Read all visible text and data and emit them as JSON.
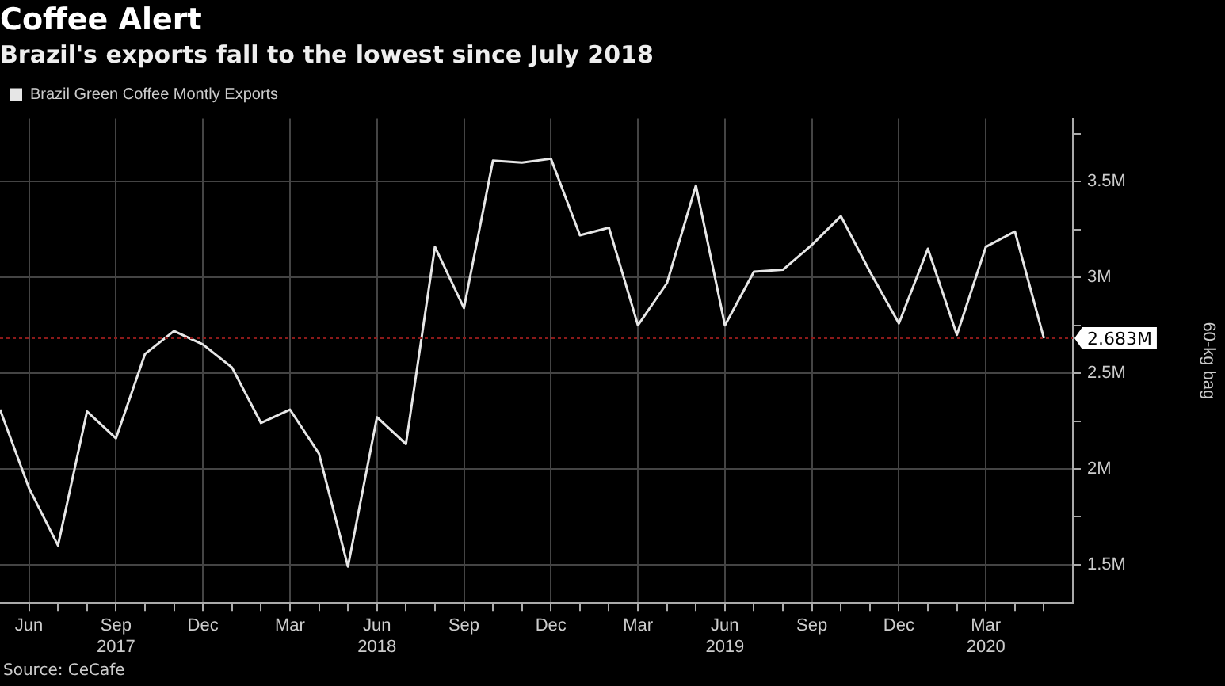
{
  "chart_data": {
    "type": "line",
    "title": "Coffee Alert",
    "subtitle": "Brazil's exports fall to the lowest since July 2018",
    "x": [
      "2017-05",
      "2017-06",
      "2017-07",
      "2017-08",
      "2017-09",
      "2017-10",
      "2017-11",
      "2017-12",
      "2018-01",
      "2018-02",
      "2018-03",
      "2018-04",
      "2018-05",
      "2018-06",
      "2018-07",
      "2018-08",
      "2018-09",
      "2018-10",
      "2018-11",
      "2018-12",
      "2019-01",
      "2019-02",
      "2019-03",
      "2019-04",
      "2019-05",
      "2019-06",
      "2019-07",
      "2019-08",
      "2019-09",
      "2019-10",
      "2019-11",
      "2019-12",
      "2020-01",
      "2020-02",
      "2020-03",
      "2020-04",
      "2020-05"
    ],
    "series": [
      {
        "name": "Brazil Green Coffee Montly Exports",
        "color": "#e6e6e6",
        "values": [
          2.31,
          1.9,
          1.6,
          2.3,
          2.16,
          2.6,
          2.72,
          2.65,
          2.53,
          2.24,
          2.31,
          2.08,
          1.49,
          2.27,
          2.13,
          3.16,
          2.84,
          3.61,
          3.6,
          3.62,
          3.22,
          3.26,
          2.75,
          2.97,
          3.48,
          2.75,
          3.03,
          3.04,
          3.17,
          3.32,
          3.03,
          2.76,
          3.15,
          2.7,
          3.16,
          3.24,
          2.683
        ]
      }
    ],
    "xlim": [
      "2017-05",
      "2020-06"
    ],
    "xticks": [
      {
        "value": "2017-06",
        "label": "Jun"
      },
      {
        "value": "2017-07",
        "label": null
      },
      {
        "value": "2017-08",
        "label": null
      },
      {
        "value": "2017-09",
        "label": "Sep\n2017"
      },
      {
        "value": "2017-10",
        "label": null
      },
      {
        "value": "2017-11",
        "label": null
      },
      {
        "value": "2017-12",
        "label": "Dec"
      },
      {
        "value": "2018-01",
        "label": null
      },
      {
        "value": "2018-02",
        "label": null
      },
      {
        "value": "2018-03",
        "label": "Mar"
      },
      {
        "value": "2018-04",
        "label": null
      },
      {
        "value": "2018-05",
        "label": null
      },
      {
        "value": "2018-06",
        "label": "Jun\n2018"
      },
      {
        "value": "2018-07",
        "label": null
      },
      {
        "value": "2018-08",
        "label": null
      },
      {
        "value": "2018-09",
        "label": "Sep"
      },
      {
        "value": "2018-10",
        "label": null
      },
      {
        "value": "2018-11",
        "label": null
      },
      {
        "value": "2018-12",
        "label": "Dec"
      },
      {
        "value": "2019-01",
        "label": null
      },
      {
        "value": "2019-02",
        "label": null
      },
      {
        "value": "2019-03",
        "label": "Mar"
      },
      {
        "value": "2019-04",
        "label": null
      },
      {
        "value": "2019-05",
        "label": null
      },
      {
        "value": "2019-06",
        "label": "Jun\n2019"
      },
      {
        "value": "2019-07",
        "label": null
      },
      {
        "value": "2019-08",
        "label": null
      },
      {
        "value": "2019-09",
        "label": "Sep"
      },
      {
        "value": "2019-10",
        "label": null
      },
      {
        "value": "2019-11",
        "label": null
      },
      {
        "value": "2019-12",
        "label": "Dec"
      },
      {
        "value": "2020-01",
        "label": null
      },
      {
        "value": "2020-02",
        "label": null
      },
      {
        "value": "2020-03",
        "label": "Mar\n2020"
      },
      {
        "value": "2020-04",
        "label": null
      },
      {
        "value": "2020-05",
        "label": null
      }
    ],
    "ylim": [
      1.3,
      3.83
    ],
    "yticks": [
      {
        "value": 1.5,
        "label": "1.5M"
      },
      {
        "value": 1.75,
        "label": null
      },
      {
        "value": 2,
        "label": "2M"
      },
      {
        "value": 2.25,
        "label": null
      },
      {
        "value": 2.5,
        "label": "2.5M"
      },
      {
        "value": 2.75,
        "label": null
      },
      {
        "value": 3,
        "label": "3M"
      },
      {
        "value": 3.25,
        "label": null
      },
      {
        "value": 3.5,
        "label": "3.5M"
      },
      {
        "value": 3.75,
        "label": null
      }
    ],
    "ylabel": "60-kg bag",
    "ref_lines": [
      {
        "axis": "y",
        "value": 2.683,
        "label": "2.683M",
        "color": "#8b1a1a",
        "line_style": "dotted"
      }
    ],
    "annotations": [
      "Source: CeCafe"
    ],
    "grid": true,
    "legend": "top left",
    "marker": "none",
    "line_style": "solid"
  }
}
